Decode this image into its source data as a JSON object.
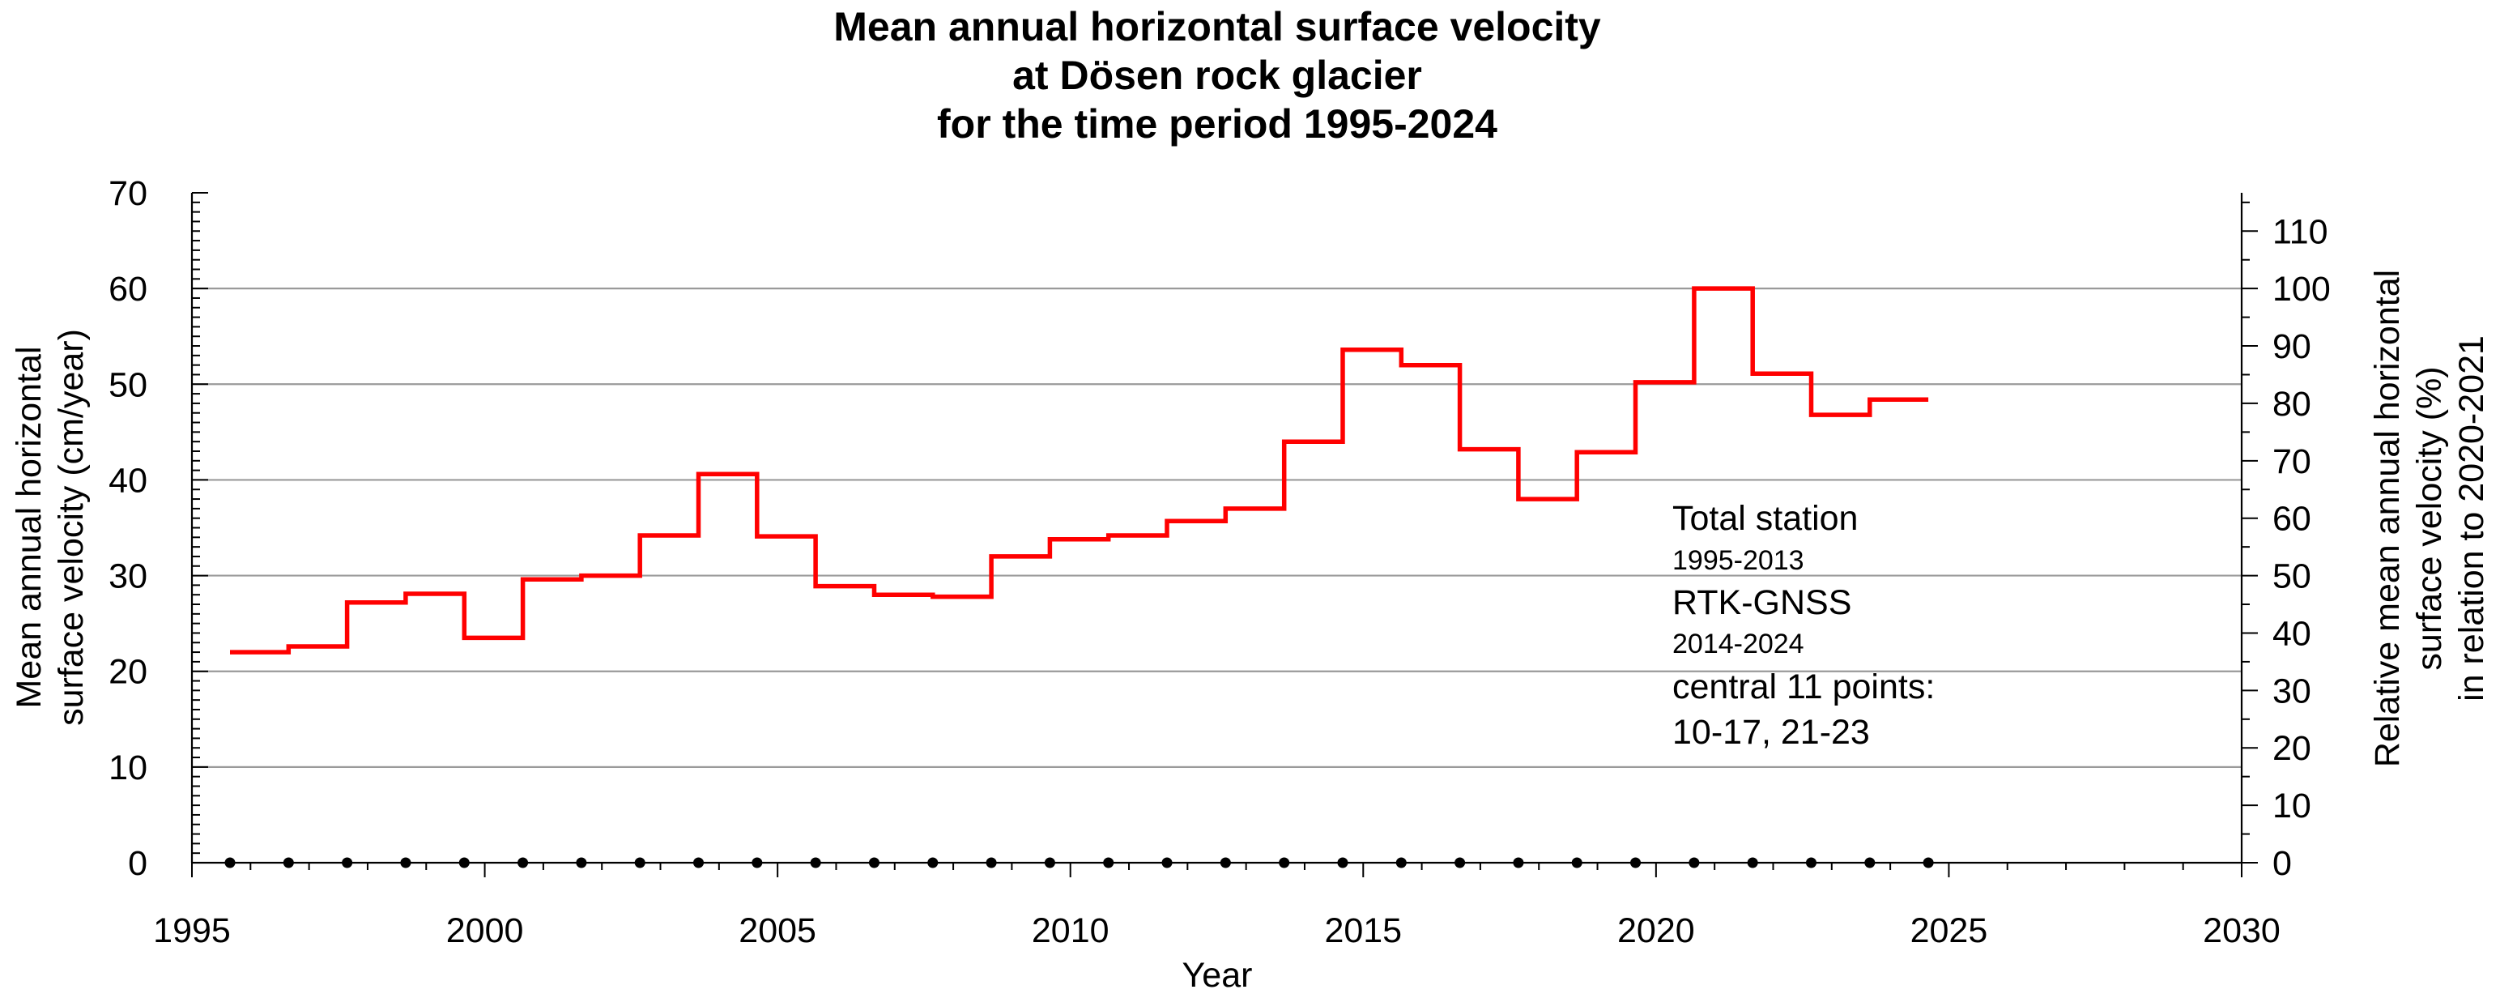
{
  "chart_data": {
    "type": "line",
    "title_lines": [
      "Mean annual horizontal surface velocity",
      "at Dösen rock glacier",
      "for the time period 1995-2024"
    ],
    "xlabel": "Year",
    "ylabel_lines": [
      "Mean annual horizontal",
      "surface velocity (cm/year)"
    ],
    "y2label_lines": [
      "Relative mean annual horizontal",
      "surface velocity (%)",
      "in relation to 2020-2021"
    ],
    "xlim": [
      1995,
      2030
    ],
    "ylim": [
      0,
      70
    ],
    "y2lim": [
      0,
      116.67
    ],
    "x_ticks": [
      "1995",
      "2000",
      "2005",
      "2010",
      "2015",
      "2020",
      "2025",
      "2030"
    ],
    "y_ticks": [
      "0",
      "10",
      "20",
      "30",
      "40",
      "50",
      "60",
      "70"
    ],
    "y2_ticks": [
      "0",
      "10",
      "20",
      "30",
      "40",
      "50",
      "60",
      "70",
      "80",
      "90",
      "100",
      "110"
    ],
    "grid": "horizontal",
    "series": [
      {
        "style": "step",
        "color": "#ff0000",
        "x_start": [
          1995.65,
          1996.65,
          1997.65,
          1998.65,
          1999.65,
          2000.65,
          2001.65,
          2002.65,
          2003.65,
          2004.65,
          2005.65,
          2006.65,
          2007.65,
          2008.65,
          2009.65,
          2010.65,
          2011.65,
          2012.65,
          2013.65,
          2014.65,
          2015.65,
          2016.65,
          2017.65,
          2018.65,
          2019.65,
          2020.65,
          2021.65,
          2022.65,
          2023.65
        ],
        "x_end": 2024.65,
        "values": [
          22.0,
          22.6,
          27.2,
          28.1,
          23.5,
          29.6,
          30.0,
          34.2,
          40.6,
          34.1,
          28.9,
          28.0,
          27.8,
          32.0,
          33.8,
          34.2,
          35.7,
          37.0,
          44.0,
          53.6,
          52.0,
          43.2,
          38.0,
          42.9,
          50.2,
          60.0,
          51.1,
          46.8,
          48.4
        ]
      }
    ],
    "dates_marked": [
      1995.65,
      1996.65,
      1997.65,
      1998.65,
      1999.65,
      2000.65,
      2001.65,
      2002.65,
      2003.65,
      2004.65,
      2005.65,
      2006.65,
      2007.65,
      2008.65,
      2009.65,
      2010.65,
      2011.65,
      2012.65,
      2013.65,
      2014.65,
      2015.65,
      2016.65,
      2017.65,
      2018.65,
      2019.65,
      2020.65,
      2021.65,
      2022.65,
      2023.65,
      2024.65
    ],
    "annotations": [
      {
        "text": "Total station",
        "size": "large"
      },
      {
        "text": "1995-2013",
        "size": "small"
      },
      {
        "text": "RTK-GNSS",
        "size": "large"
      },
      {
        "text": "2014-2024",
        "size": "small"
      },
      {
        "text": "central 11 points:",
        "size": "large"
      },
      {
        "text": "10-17, 21-23",
        "size": "large"
      }
    ]
  }
}
